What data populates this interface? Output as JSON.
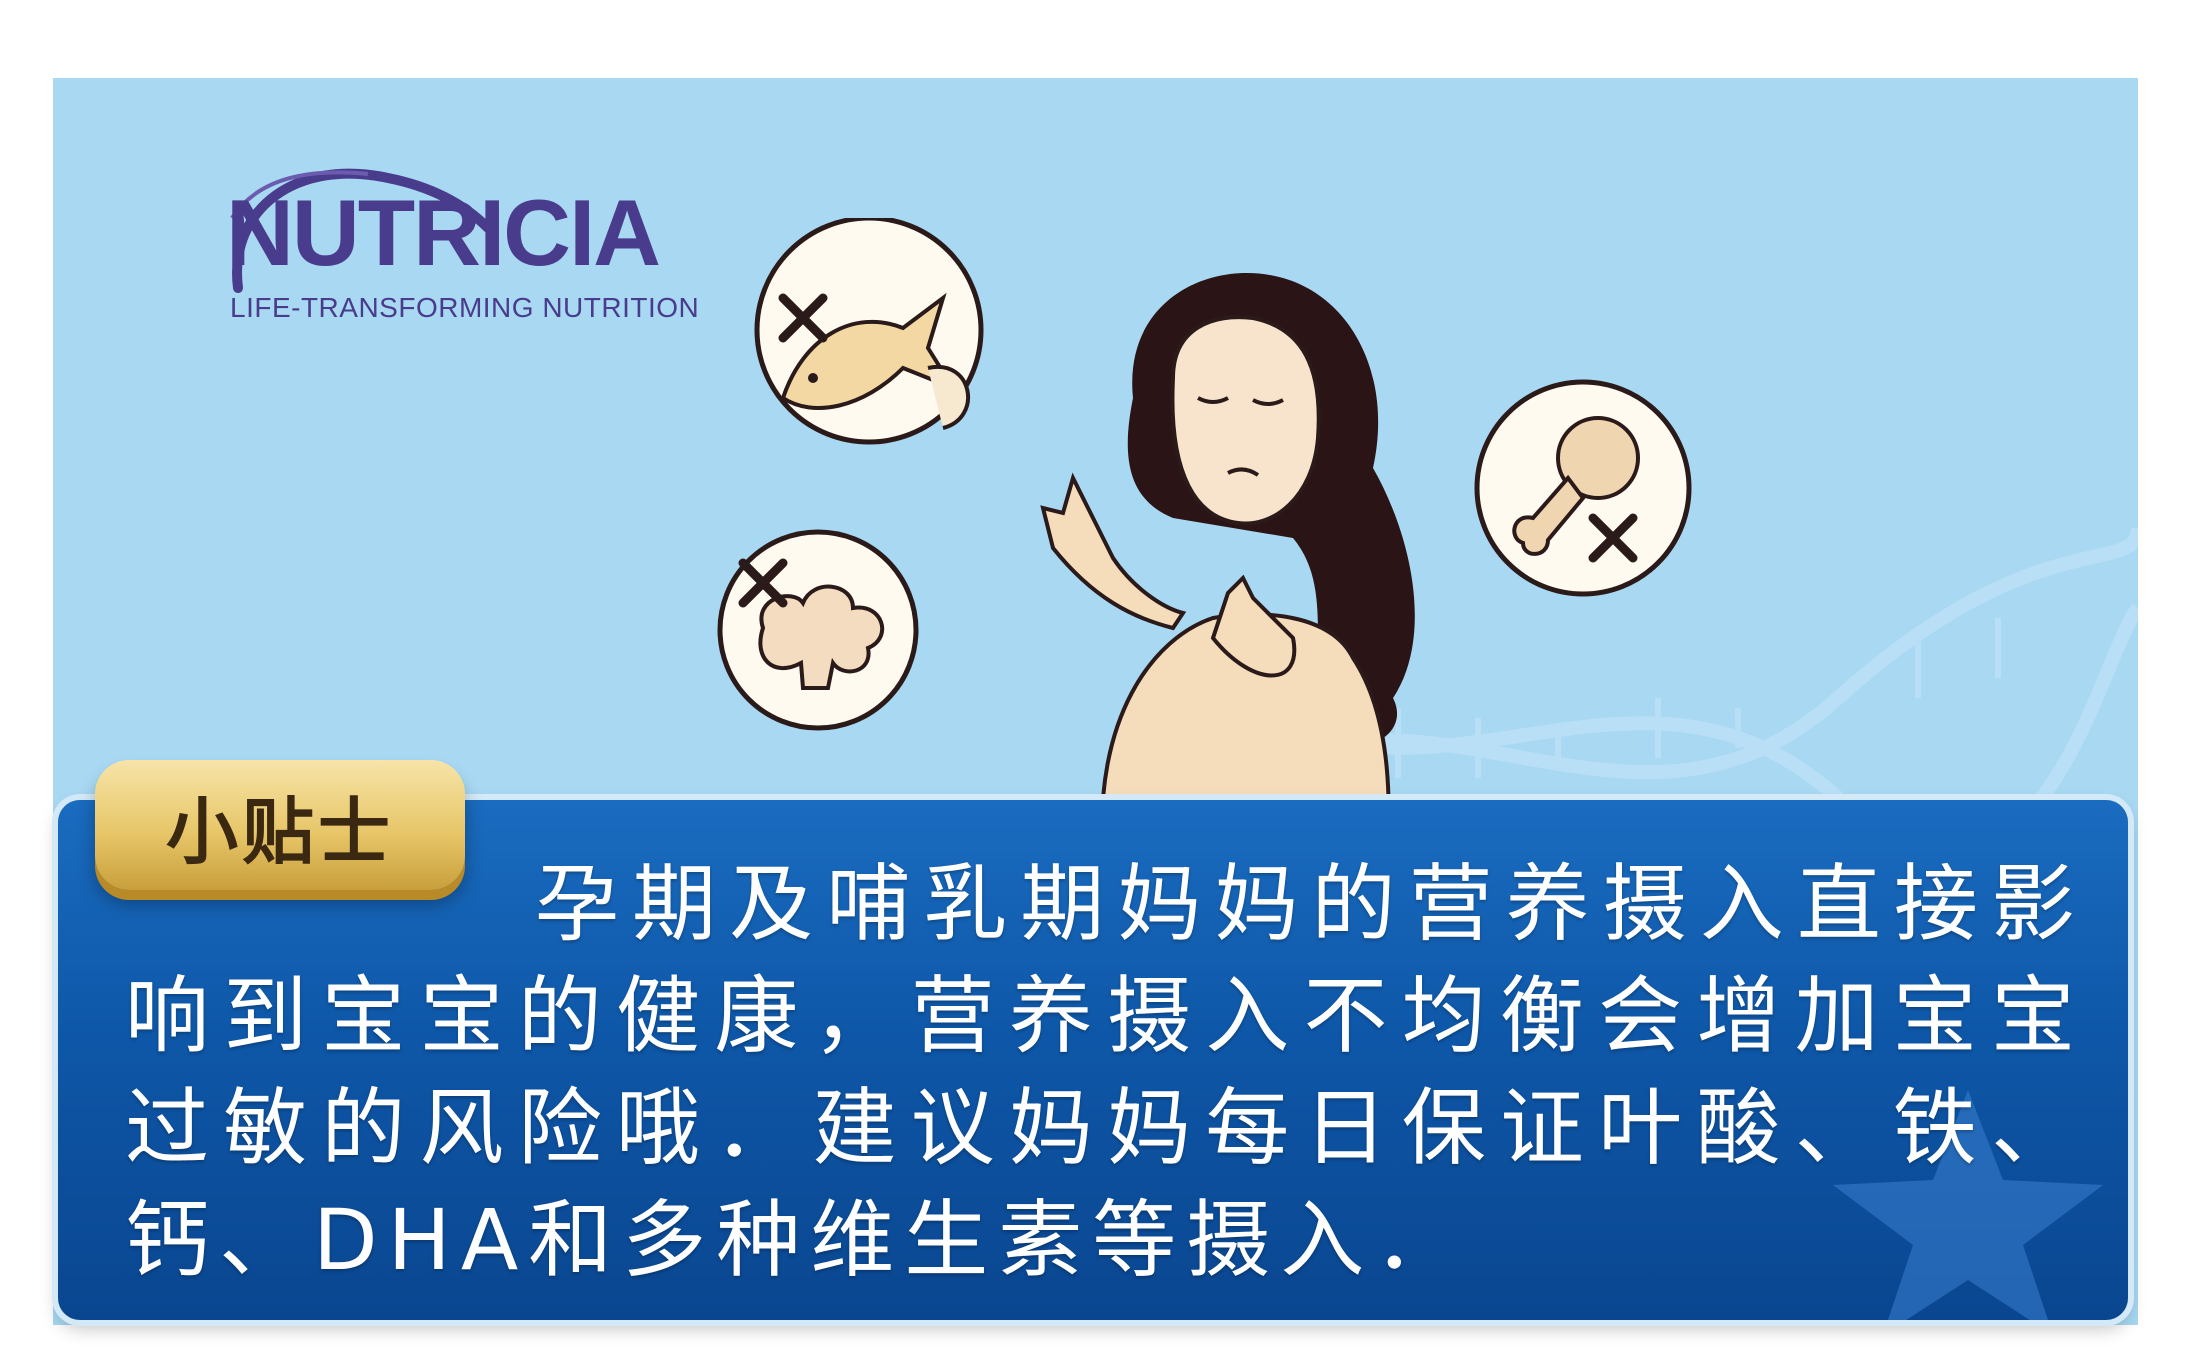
{
  "brand": {
    "name": "NUTRICIA",
    "tagline": "LIFE-TRANSFORMING NUTRITION",
    "color": "#4a3c8c"
  },
  "illustration": {
    "subject": "pregnant-woman-refusing-food-icon",
    "crossed_items": [
      "fish-icon",
      "shrimp-icon",
      "chicken-leg-icon",
      "broccoli-icon"
    ],
    "background_color": "#a8d8f2"
  },
  "tip": {
    "badge_label": "小贴士",
    "text": "孕期及哺乳期妈妈的营养摄入直接影响到宝宝的健康，营养摄入不均衡会增加宝宝过敏的风险哦．建议妈妈每日保证叶酸、铁、钙、DHA和多种维生素等摄入．",
    "panel_color": "#0e57a8",
    "badge_color": "#e8c76a"
  }
}
